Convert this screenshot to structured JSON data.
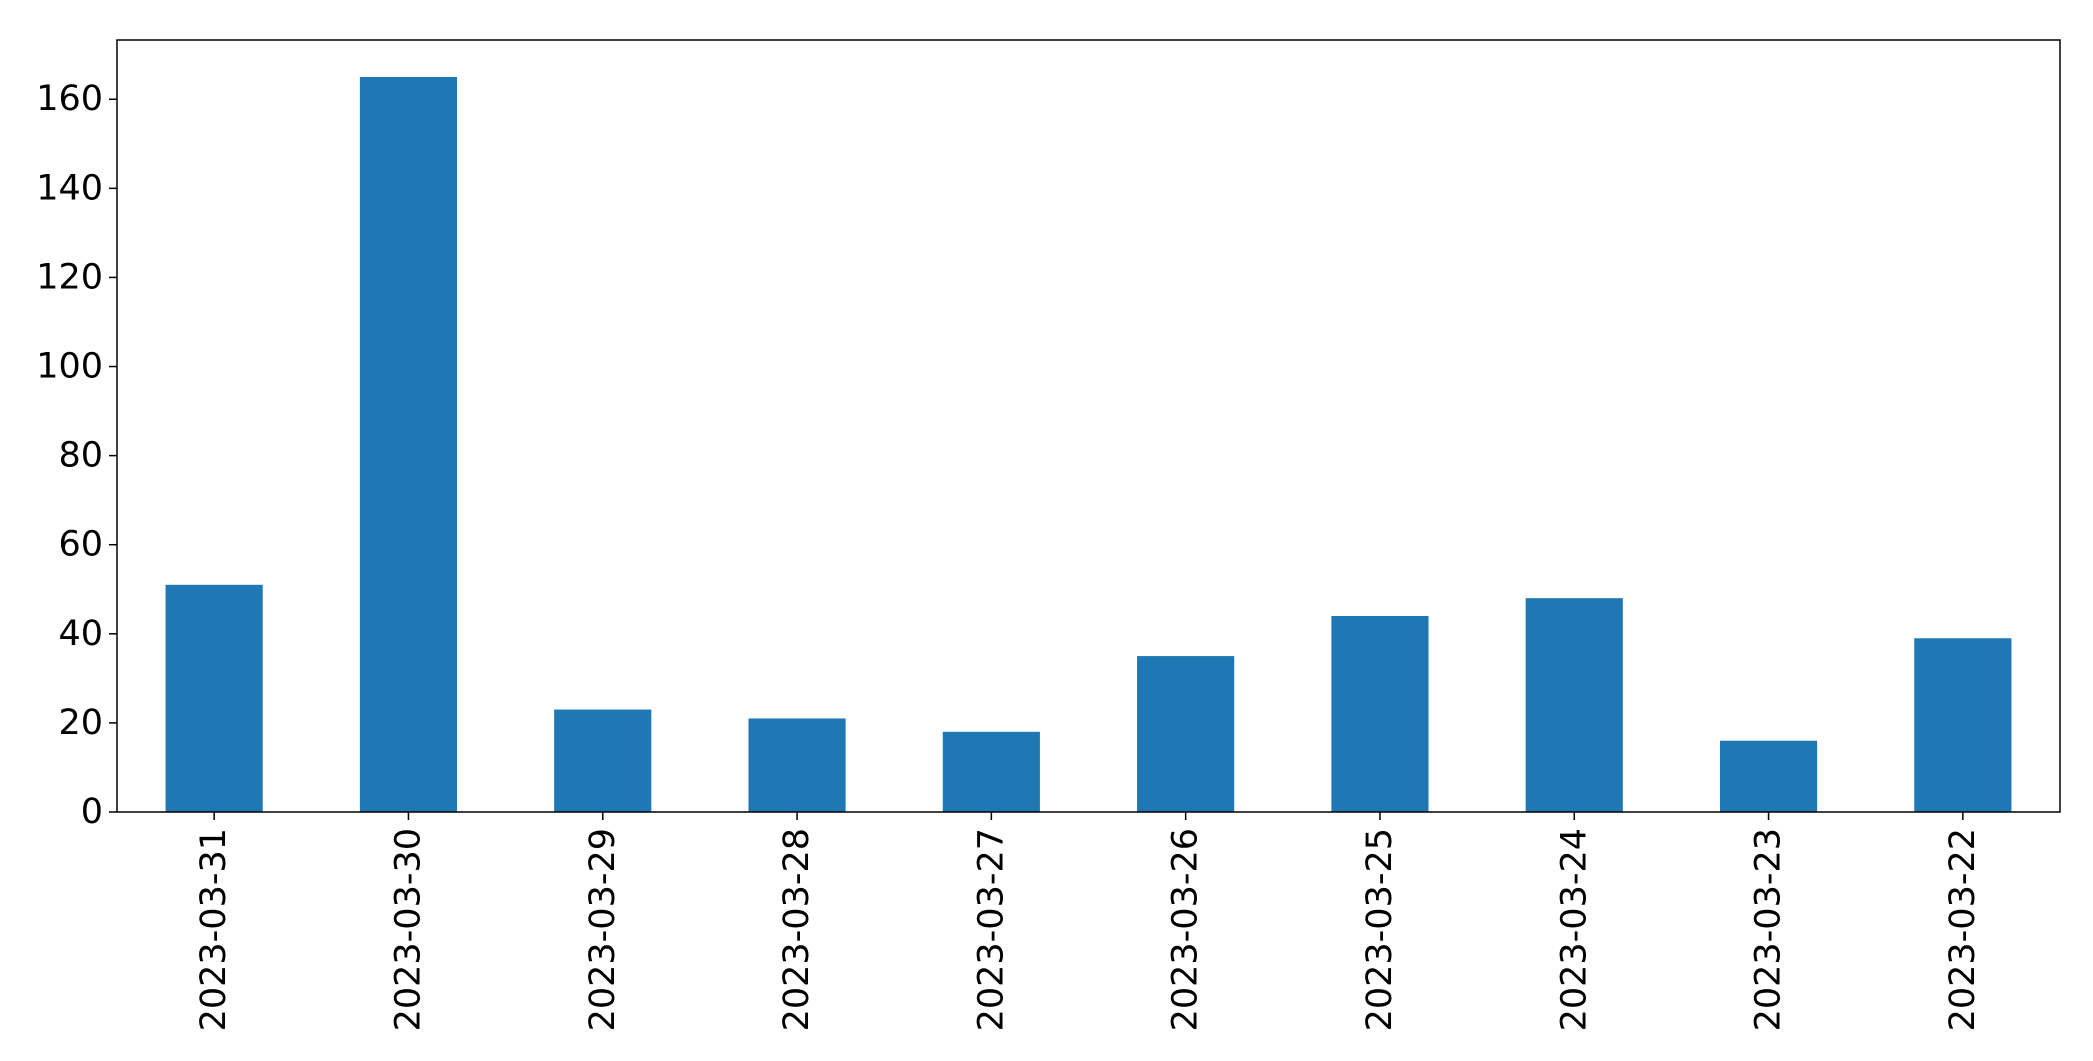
{
  "chart_data": {
    "type": "bar",
    "title": "",
    "xlabel": "",
    "ylabel": "",
    "categories": [
      "2023-03-31",
      "2023-03-30",
      "2023-03-29",
      "2023-03-28",
      "2023-03-27",
      "2023-03-26",
      "2023-03-25",
      "2023-03-24",
      "2023-03-23",
      "2023-03-22"
    ],
    "values": [
      51,
      165,
      23,
      21,
      18,
      35,
      44,
      48,
      16,
      39
    ],
    "ylim": [
      0,
      173.3
    ],
    "yticks": [
      0,
      20,
      40,
      60,
      80,
      100,
      120,
      140,
      160
    ],
    "grid": false,
    "legend": "none",
    "bar_color": "#1f77b4"
  }
}
